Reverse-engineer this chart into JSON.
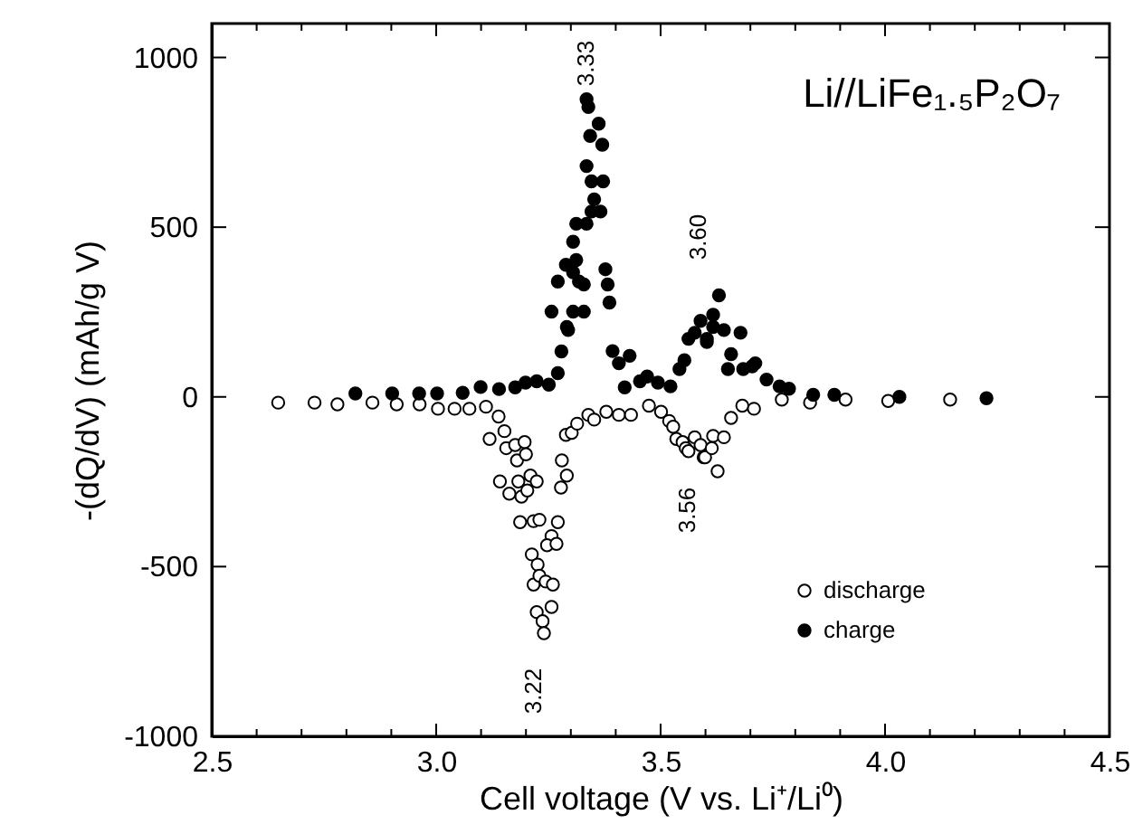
{
  "chart_data": {
    "type": "scatter",
    "xlabel": "Cell voltage (V vs. Li⁺/Li⁰)",
    "ylabel": "-(dQ/dV) (mAh/g V)",
    "xlim": [
      2.5,
      4.5
    ],
    "xticks": [
      2.5,
      {
        "value": 2.6,
        "label": null
      },
      {
        "value": 2.7,
        "label": null
      },
      {
        "value": 2.8,
        "label": null
      },
      {
        "value": 2.9,
        "label": null
      },
      {
        "value": 3.0,
        "label": "3.0"
      },
      {
        "value": 3.1,
        "label": null
      },
      {
        "value": 3.2,
        "label": null
      },
      {
        "value": 3.3,
        "label": null
      },
      {
        "value": 3.4,
        "label": null
      },
      3.5,
      {
        "value": 3.6,
        "label": null
      },
      {
        "value": 3.7,
        "label": null
      },
      {
        "value": 3.8,
        "label": null
      },
      {
        "value": 3.9,
        "label": null
      },
      {
        "value": 4.0,
        "label": "4.0"
      },
      {
        "value": 4.1,
        "label": null
      },
      {
        "value": 4.2,
        "label": null
      },
      {
        "value": 4.3,
        "label": null
      },
      {
        "value": 4.4,
        "label": null
      },
      4.5
    ],
    "ylim": [
      -1000,
      1100
    ],
    "yticks": [
      {
        "value": -1000,
        "label": "-1000"
      },
      {
        "value": -500,
        "label": "-500"
      },
      0,
      500,
      1000
    ],
    "grid": false,
    "legend": "bottom right",
    "marker": "circle",
    "annotations": [
      "Li//LiFe₁.₅P₂O₇",
      "3.33",
      "3.60",
      "3.56",
      "3.22"
    ],
    "series": [
      {
        "name": "discharge",
        "color": "#ffffff",
        "x": [
          2.648,
          2.729,
          2.78,
          2.858,
          2.912,
          2.963,
          3.004,
          3.041,
          3.074,
          3.111,
          3.139,
          3.119,
          3.152,
          3.156,
          3.176,
          3.197,
          3.18,
          3.2,
          3.142,
          3.163,
          3.183,
          3.19,
          3.203,
          3.21,
          3.224,
          3.187,
          3.217,
          3.23,
          3.271,
          3.257,
          3.247,
          3.268,
          3.213,
          3.226,
          3.217,
          3.23,
          3.244,
          3.26,
          3.224,
          3.257,
          3.237,
          3.24,
          3.278,
          3.291,
          3.28,
          3.289,
          3.302,
          3.314,
          3.339,
          3.352,
          3.379,
          3.407,
          3.434,
          3.474,
          3.501,
          3.519,
          3.528,
          3.535,
          3.549,
          3.556,
          3.562,
          3.576,
          3.589,
          3.596,
          3.599,
          3.617,
          3.614,
          3.627,
          3.641,
          3.657,
          3.682,
          3.708,
          3.77,
          3.833,
          3.912,
          4.007,
          4.145
        ],
        "values": [
          -17,
          -17,
          -22,
          -17,
          -22,
          -22,
          -35,
          -35,
          -35,
          -29,
          -58,
          -124,
          -101,
          -151,
          -142,
          -133,
          -187,
          -169,
          -249,
          -285,
          -249,
          -294,
          -276,
          -232,
          -249,
          -369,
          -366,
          -362,
          -369,
          -410,
          -437,
          -433,
          -464,
          -494,
          -553,
          -527,
          -544,
          -553,
          -634,
          -619,
          -661,
          -696,
          -267,
          -232,
          -187,
          -112,
          -106,
          -79,
          -53,
          -67,
          -44,
          -53,
          -53,
          -26,
          -44,
          -71,
          -88,
          -124,
          -133,
          -151,
          -160,
          -119,
          -142,
          -178,
          -178,
          -115,
          -151,
          -219,
          -119,
          -62,
          -26,
          -35,
          -8,
          -17,
          -8,
          -12,
          -8
        ]
      },
      {
        "name": "charge",
        "color": "#000000",
        "x": [
          2.82,
          2.902,
          2.962,
          3.002,
          3.059,
          3.099,
          3.14,
          3.176,
          3.199,
          3.224,
          3.251,
          3.271,
          3.279,
          3.257,
          3.291,
          3.294,
          3.305,
          3.329,
          3.271,
          3.289,
          3.312,
          3.305,
          3.318,
          3.329,
          3.305,
          3.312,
          3.335,
          3.346,
          3.366,
          3.352,
          3.372,
          3.346,
          3.335,
          3.362,
          3.343,
          3.37,
          3.339,
          3.335,
          3.377,
          3.382,
          3.386,
          3.393,
          3.407,
          3.431,
          3.42,
          3.454,
          3.47,
          3.494,
          3.522,
          3.542,
          3.553,
          3.562,
          3.576,
          3.589,
          3.603,
          3.617,
          3.63,
          3.617,
          3.641,
          3.678,
          3.603,
          3.657,
          3.65,
          3.684,
          3.704,
          3.711,
          3.736,
          3.765,
          3.786,
          3.84,
          3.887,
          4.032,
          4.226
        ],
        "values": [
          10,
          10,
          10,
          10,
          12,
          29,
          23,
          28,
          42,
          46,
          36,
          70,
          134,
          251,
          206,
          197,
          251,
          251,
          340,
          389,
          403,
          367,
          340,
          331,
          457,
          510,
          510,
          546,
          546,
          582,
          635,
          635,
          680,
          805,
          769,
          743,
          854,
          877,
          376,
          331,
          278,
          135,
          99,
          121,
          28,
          46,
          60,
          42,
          31,
          82,
          108,
          171,
          189,
          224,
          171,
          206,
          299,
          242,
          197,
          189,
          162,
          126,
          82,
          82,
          90,
          99,
          51,
          31,
          24,
          6,
          6,
          0,
          -4
        ]
      }
    ]
  }
}
